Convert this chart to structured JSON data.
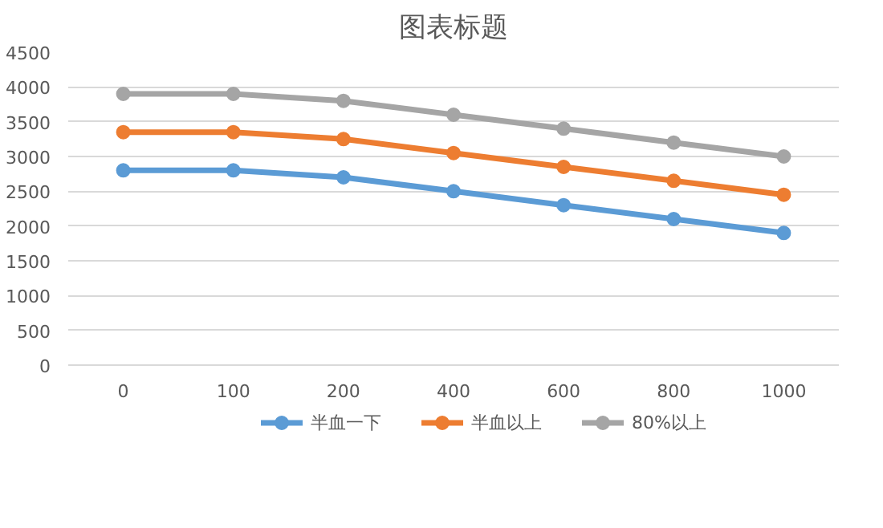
{
  "chart_data": {
    "type": "line",
    "title": "图表标题",
    "categories": [
      "0",
      "100",
      "200",
      "400",
      "600",
      "800",
      "1000"
    ],
    "series": [
      {
        "name": "半血一下",
        "color": "#5b9bd5",
        "values": [
          2800,
          2800,
          2700,
          2500,
          2300,
          2100,
          1900
        ]
      },
      {
        "name": "半血以上",
        "color": "#ed7d31",
        "values": [
          3350,
          3350,
          3250,
          3050,
          2850,
          2650,
          2450
        ]
      },
      {
        "name": "80%以上",
        "color": "#a5a5a5",
        "values": [
          3900,
          3900,
          3800,
          3600,
          3400,
          3200,
          3000
        ]
      }
    ],
    "ylim": [
      0,
      4500
    ],
    "yticks": [
      0,
      500,
      1000,
      1500,
      2000,
      2500,
      3000,
      3500,
      4000,
      4500
    ],
    "grid": "y",
    "legend": "bottom",
    "marker": "circle",
    "line_style": "solid"
  }
}
